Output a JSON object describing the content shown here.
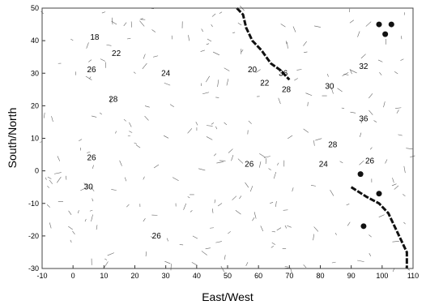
{
  "chart_data": {
    "type": "contour",
    "xlabel": "East/West",
    "ylabel": "South/North",
    "xlim": [
      -10,
      110
    ],
    "ylim": [
      -30,
      50
    ],
    "x_ticks": [
      -10,
      0,
      10,
      20,
      30,
      40,
      50,
      60,
      70,
      80,
      90,
      100,
      110
    ],
    "y_ticks": [
      -30,
      -20,
      -10,
      0,
      10,
      20,
      30,
      40,
      50
    ],
    "grid": false,
    "contour_labels": [
      {
        "text": "18",
        "x": 7,
        "y": 41
      },
      {
        "text": "22",
        "x": 14,
        "y": 36
      },
      {
        "text": "26",
        "x": 6,
        "y": 31
      },
      {
        "text": "24",
        "x": 30,
        "y": 30
      },
      {
        "text": "28",
        "x": 13,
        "y": 22
      },
      {
        "text": "26",
        "x": 6,
        "y": 4
      },
      {
        "text": "30",
        "x": 5,
        "y": -5
      },
      {
        "text": "26",
        "x": 27,
        "y": -20
      },
      {
        "text": "20",
        "x": 58,
        "y": 31
      },
      {
        "text": "22",
        "x": 62,
        "y": 27
      },
      {
        "text": "36",
        "x": 68,
        "y": 30
      },
      {
        "text": "28",
        "x": 69,
        "y": 25
      },
      {
        "text": "30",
        "x": 83,
        "y": 26
      },
      {
        "text": "32",
        "x": 94,
        "y": 32
      },
      {
        "text": "36",
        "x": 94,
        "y": 16
      },
      {
        "text": "28",
        "x": 84,
        "y": 8
      },
      {
        "text": "24",
        "x": 81,
        "y": 2
      },
      {
        "text": "26",
        "x": 57,
        "y": 2
      },
      {
        "text": "26",
        "x": 96,
        "y": 3
      }
    ],
    "colors": {
      "contour": "#222222",
      "coast": "#111111"
    }
  }
}
